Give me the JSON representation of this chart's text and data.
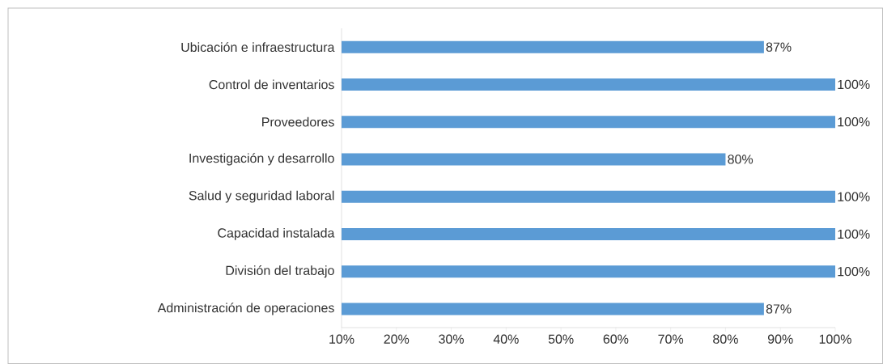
{
  "chart_data": {
    "type": "bar",
    "orientation": "horizontal",
    "categories": [
      "Ubicación e infraestructura",
      "Control de inventarios",
      "Proveedores",
      "Investigación y desarrollo",
      "Salud y seguridad laboral",
      "Capacidad instalada",
      "División del trabajo",
      "Administración de operaciones"
    ],
    "values": [
      87,
      100,
      100,
      80,
      100,
      100,
      100,
      87
    ],
    "value_labels": [
      "87%",
      "100%",
      "100%",
      "80%",
      "100%",
      "100%",
      "100%",
      "87%"
    ],
    "color": "#5b9bd5",
    "xlim": [
      10,
      100
    ],
    "xticks": [
      {
        "value": 10,
        "label": "10%"
      },
      {
        "value": 20,
        "label": "20%"
      },
      {
        "value": 30,
        "label": "30%"
      },
      {
        "value": 40,
        "label": "40%"
      },
      {
        "value": 50,
        "label": "50%"
      },
      {
        "value": 60,
        "label": "60%"
      },
      {
        "value": 70,
        "label": "70%"
      },
      {
        "value": 80,
        "label": "80%"
      },
      {
        "value": 90,
        "label": "90%"
      },
      {
        "value": 100,
        "label": "100%"
      }
    ],
    "grid": false
  }
}
